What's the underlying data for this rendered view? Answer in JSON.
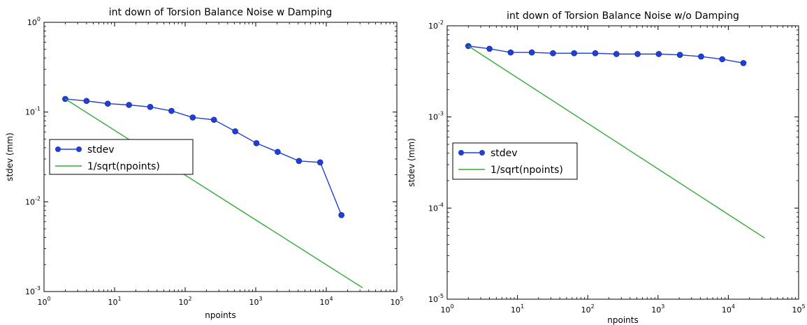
{
  "chart_data": [
    {
      "type": "line",
      "title": "int down of Torsion Balance Noise w    Damping",
      "xlabel": "npoints",
      "ylabel": "stdev (mm)",
      "xscale": "log",
      "yscale": "log",
      "xlim": [
        1,
        100000
      ],
      "ylim": [
        0.001,
        1
      ],
      "x_ticks": [
        {
          "base": "10",
          "exp": "0",
          "value": 1
        },
        {
          "base": "10",
          "exp": "1",
          "value": 10
        },
        {
          "base": "10",
          "exp": "2",
          "value": 100
        },
        {
          "base": "10",
          "exp": "3",
          "value": 1000
        },
        {
          "base": "10",
          "exp": "4",
          "value": 10000
        },
        {
          "base": "10",
          "exp": "5",
          "value": 100000
        }
      ],
      "y_ticks": [
        {
          "base": "10",
          "exp": "-3",
          "value": 0.001
        },
        {
          "base": "10",
          "exp": "-2",
          "value": 0.01
        },
        {
          "base": "10",
          "exp": "-1",
          "value": 0.1
        },
        {
          "base": "10",
          "exp": "0",
          "value": 1
        }
      ],
      "legend_position": "center-left",
      "series": [
        {
          "name": "stdev",
          "color": "#1f3fd6",
          "marker": "circle",
          "x": [
            2,
            4,
            8,
            16,
            32,
            64,
            128,
            256,
            512,
            1024,
            2048,
            4096,
            8192,
            16384
          ],
          "y": [
            0.14,
            0.133,
            0.124,
            0.12,
            0.114,
            0.103,
            0.087,
            0.082,
            0.061,
            0.045,
            0.036,
            0.0285,
            0.0275,
            0.0071
          ]
        },
        {
          "name": "1/sqrt(npoints)",
          "color": "#33aa33",
          "marker": "none",
          "x": [
            2,
            32768
          ],
          "y": [
            0.14,
            0.0011
          ]
        }
      ]
    },
    {
      "type": "line",
      "title": "int down of Torsion Balance Noise w/o Damping",
      "xlabel": "npoints",
      "ylabel": "stdev (mm)",
      "xscale": "log",
      "yscale": "log",
      "xlim": [
        1,
        100000
      ],
      "ylim": [
        1e-05,
        0.01
      ],
      "x_ticks": [
        {
          "base": "10",
          "exp": "0",
          "value": 1
        },
        {
          "base": "10",
          "exp": "1",
          "value": 10
        },
        {
          "base": "10",
          "exp": "2",
          "value": 100
        },
        {
          "base": "10",
          "exp": "3",
          "value": 1000
        },
        {
          "base": "10",
          "exp": "4",
          "value": 10000
        },
        {
          "base": "10",
          "exp": "5",
          "value": 100000
        }
      ],
      "y_ticks": [
        {
          "base": "10",
          "exp": "-5",
          "value": 1e-05
        },
        {
          "base": "10",
          "exp": "-4",
          "value": 0.0001
        },
        {
          "base": "10",
          "exp": "-3",
          "value": 0.001
        },
        {
          "base": "10",
          "exp": "-2",
          "value": 0.01
        }
      ],
      "legend_position": "center-left",
      "series": [
        {
          "name": "stdev",
          "color": "#1f3fd6",
          "marker": "circle",
          "x": [
            2,
            4,
            8,
            16,
            32,
            64,
            128,
            256,
            512,
            1024,
            2048,
            4096,
            8192,
            16384
          ],
          "y": [
            0.006,
            0.0056,
            0.0051,
            0.0051,
            0.005,
            0.005,
            0.005,
            0.0049,
            0.0049,
            0.0049,
            0.0048,
            0.0046,
            0.0043,
            0.0039
          ]
        },
        {
          "name": "1/sqrt(npoints)",
          "color": "#33aa33",
          "marker": "none",
          "x": [
            2,
            32768
          ],
          "y": [
            0.006,
            4.7e-05
          ]
        }
      ]
    }
  ]
}
